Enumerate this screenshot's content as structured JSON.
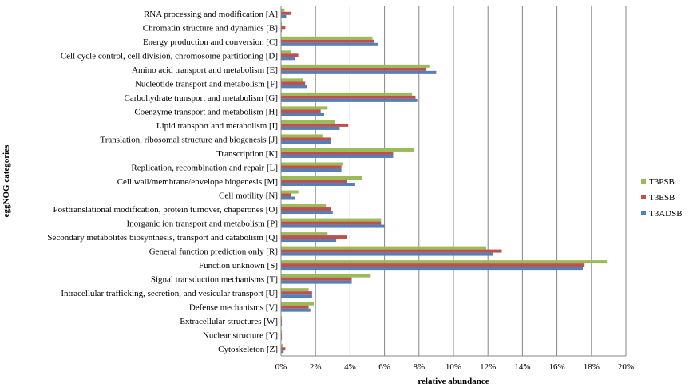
{
  "chart_data": {
    "type": "bar",
    "orientation": "horizontal",
    "xlabel": "relative abundance",
    "ylabel": "eggNOG categories",
    "xlim": [
      0,
      20
    ],
    "x_ticks": [
      "0%",
      "2%",
      "4%",
      "6%",
      "8%",
      "10%",
      "12%",
      "14%",
      "16%",
      "18%",
      "20%"
    ],
    "grid": "vertical",
    "legend_position": "right",
    "categories": [
      "RNA processing and modification [A]",
      "Chromatin structure and dynamics [B]",
      "Energy production and conversion [C]",
      "Cell cycle control, cell division, chromosome partitioning [D]",
      "Amino acid transport and metabolism [E]",
      "Nucleotide transport and metabolism [F]",
      "Carbohydrate transport and metabolism [G]",
      "Coenzyme transport and metabolism [H]",
      "Lipid transport and metabolism [I]",
      "Translation, ribosomal structure and biogenesis [J]",
      "Transcription [K]",
      "Replication, recombination and repair [L]",
      "Cell wall/membrane/envelope biogenesis [M]",
      "Cell motility [N]",
      "Posttranslational modification, protein turnover, chaperones [O]",
      "Inorganic ion transport and metabolism [P]",
      "Secondary metabolites biosynthesis, transport and catabolism [Q]",
      "General function prediction only [R]",
      "Function unknown [S]",
      "Signal transduction mechanisms [T]",
      "Intracellular trafficking, secretion, and vesicular transport [U]",
      "Defense mechanisms [V]",
      "Extracellular structures [W]",
      "Nuclear structure [Y]",
      "Cytoskeleton [Z]"
    ],
    "series": [
      {
        "name": "T3PSB",
        "color": "#9BBB59",
        "values": [
          0.2,
          0.05,
          5.3,
          0.6,
          8.6,
          1.3,
          7.6,
          2.7,
          3.1,
          2.4,
          7.7,
          3.6,
          4.7,
          1.0,
          2.6,
          5.8,
          2.7,
          11.9,
          18.9,
          5.2,
          1.6,
          1.9,
          0.05,
          0.05,
          0.1
        ]
      },
      {
        "name": "T3ESB",
        "color": "#C0504D",
        "values": [
          0.6,
          0.25,
          5.4,
          1.0,
          8.4,
          1.4,
          7.8,
          2.3,
          3.9,
          2.9,
          6.5,
          3.5,
          3.8,
          0.6,
          2.9,
          5.8,
          3.8,
          12.8,
          17.6,
          4.1,
          1.8,
          1.6,
          0.05,
          0.05,
          0.25
        ]
      },
      {
        "name": "T3ADSB",
        "color": "#4F81BD",
        "values": [
          0.3,
          0.05,
          5.6,
          0.8,
          9.0,
          1.5,
          7.9,
          2.5,
          3.4,
          2.9,
          6.5,
          3.5,
          4.3,
          0.8,
          3.0,
          6.0,
          3.2,
          12.3,
          17.5,
          4.1,
          1.8,
          1.7,
          0.05,
          0.05,
          0.15
        ]
      }
    ]
  }
}
